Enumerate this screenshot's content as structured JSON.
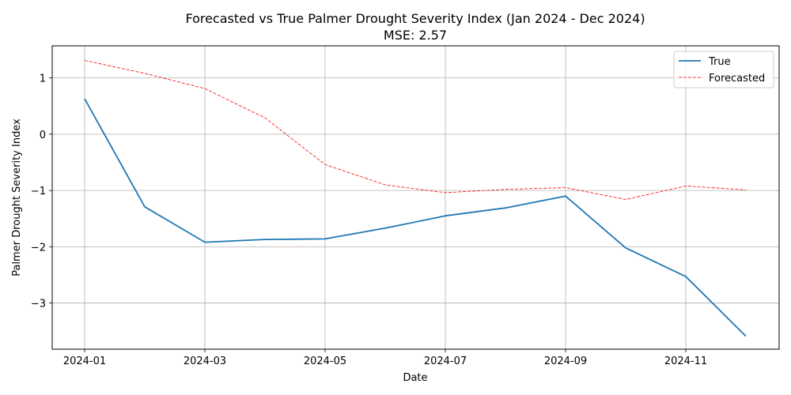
{
  "chart_data": {
    "type": "line",
    "title": "Forecasted vs True Palmer Drought Severity Index (Jan 2024 - Dec 2024)",
    "subtitle": "MSE: 2.57",
    "xlabel": "Date",
    "ylabel": "Palmer Drought Severity Index",
    "x": [
      "2024-01",
      "2024-02",
      "2024-03",
      "2024-04",
      "2024-05",
      "2024-06",
      "2024-07",
      "2024-08",
      "2024-09",
      "2024-10",
      "2024-11",
      "2024-12"
    ],
    "x_tick_labels": [
      "2024-01",
      "2024-03",
      "2024-05",
      "2024-07",
      "2024-09",
      "2024-11"
    ],
    "y_ticks": [
      1,
      0,
      -1,
      -2,
      -3
    ],
    "y_tick_labels": [
      "1",
      "0",
      "−1",
      "−2",
      "−3"
    ],
    "ylim": [
      -3.82,
      1.57
    ],
    "grid": true,
    "legend_position": "top-right",
    "series": [
      {
        "name": "True",
        "color": "#1f77b4",
        "style": "solid",
        "values": [
          0.63,
          -1.29,
          -1.92,
          -1.87,
          -1.86,
          -1.67,
          -1.45,
          -1.31,
          -1.1,
          -2.02,
          -2.53,
          -3.59
        ]
      },
      {
        "name": "Forecasted",
        "color": "#ff0000",
        "style": "dashed",
        "values": [
          1.31,
          1.08,
          0.81,
          0.29,
          -0.54,
          -0.9,
          -1.04,
          -0.98,
          -0.95,
          -1.16,
          -0.92,
          -0.99
        ]
      }
    ]
  }
}
